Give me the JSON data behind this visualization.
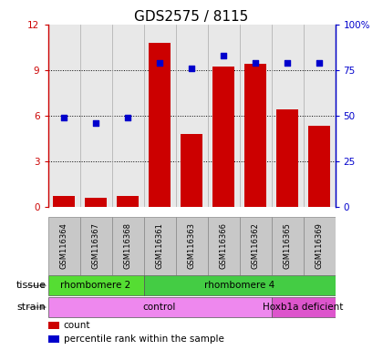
{
  "title": "GDS2575 / 8115",
  "samples": [
    "GSM116364",
    "GSM116367",
    "GSM116368",
    "GSM116361",
    "GSM116363",
    "GSM116366",
    "GSM116362",
    "GSM116365",
    "GSM116369"
  ],
  "counts": [
    0.7,
    0.6,
    0.7,
    10.8,
    4.8,
    9.2,
    9.4,
    6.4,
    5.3
  ],
  "percentiles": [
    49,
    46,
    49,
    79,
    76,
    83,
    79,
    79,
    79
  ],
  "bar_color": "#cc0000",
  "dot_color": "#0000cc",
  "ylim_left": [
    0,
    12
  ],
  "ylim_right": [
    0,
    100
  ],
  "yticks_left": [
    0,
    3,
    6,
    9,
    12
  ],
  "ytick_labels_left": [
    "0",
    "3",
    "6",
    "9",
    "12"
  ],
  "yticks_right": [
    0,
    25,
    50,
    75,
    100
  ],
  "ytick_labels_right": [
    "0",
    "25",
    "50",
    "75",
    "100%"
  ],
  "tissue_groups": [
    {
      "label": "rhombomere 2",
      "start": 0,
      "end": 3,
      "color": "#55dd33"
    },
    {
      "label": "rhombomere 4",
      "start": 3,
      "end": 9,
      "color": "#44cc44"
    }
  ],
  "strain_groups": [
    {
      "label": "control",
      "start": 0,
      "end": 7,
      "color": "#ee88ee"
    },
    {
      "label": "Hoxb1a deficient",
      "start": 7,
      "end": 9,
      "color": "#dd55cc"
    }
  ],
  "tissue_label": "tissue",
  "strain_label": "strain",
  "legend_count_label": "count",
  "legend_pct_label": "percentile rank within the sample",
  "background_color": "#ffffff",
  "plot_bg": "#e8e8e8",
  "grid_color": "#000000",
  "left_axis_color": "#cc0000",
  "right_axis_color": "#0000cc",
  "title_fontsize": 11,
  "tick_fontsize": 7.5,
  "label_fontsize": 8,
  "xtick_bg": "#c8c8c8",
  "sep_color": "#aaaaaa"
}
